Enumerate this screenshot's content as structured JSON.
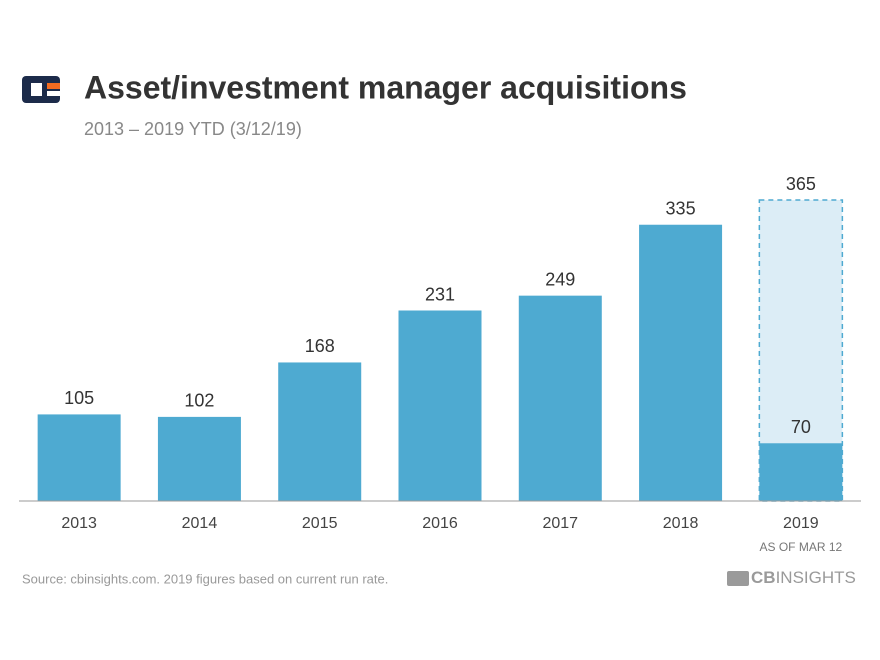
{
  "chart_data": {
    "type": "bar",
    "title": "Asset/investment manager acquisitions",
    "subtitle": "2013 – 2019 YTD (3/12/19)",
    "categories": [
      "2013",
      "2014",
      "2015",
      "2016",
      "2017",
      "2018",
      "2019"
    ],
    "category_notes": [
      null,
      null,
      null,
      null,
      null,
      null,
      "AS OF MAR 12"
    ],
    "values": [
      105,
      102,
      168,
      231,
      249,
      335,
      70
    ],
    "projected_values": [
      null,
      null,
      null,
      null,
      null,
      null,
      365
    ],
    "color": "#4eaad1",
    "projected_fill": "#dcedf6",
    "ylim": [
      0,
      365
    ],
    "source": "Source: cbinsights.com. 2019 figures based on current run rate.",
    "logo": {
      "strong": "CB",
      "rest": "INSIGHTS"
    }
  }
}
